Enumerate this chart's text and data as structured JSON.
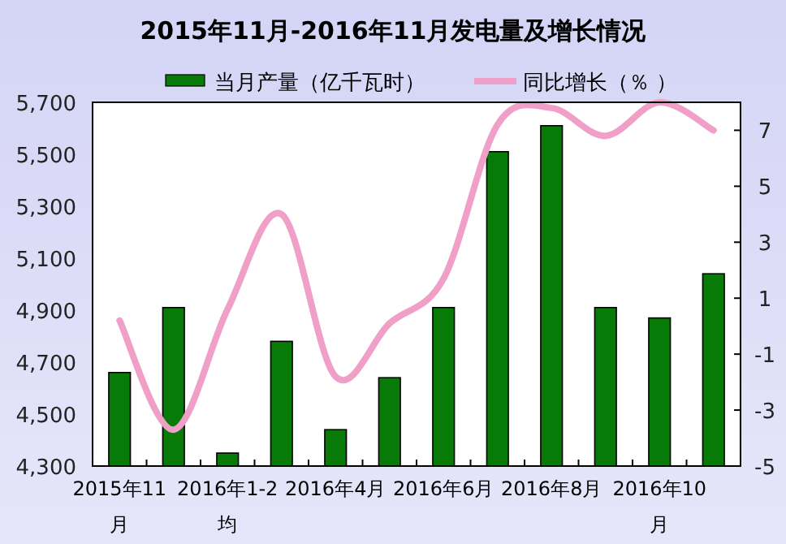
{
  "chart_data": {
    "type": "bar",
    "title": "2015年11月-2016年11月发电量及增长情况",
    "categories": [
      "2015年11月",
      null,
      "2016年1-2均",
      null,
      "2016年4月",
      null,
      "2016年6月",
      null,
      "2016年8月",
      null,
      "2016年10月",
      null
    ],
    "series": [
      {
        "name": "当月产量（亿千瓦时）",
        "color": "#077a07",
        "values": [
          4660,
          4910,
          4350,
          4780,
          4440,
          4640,
          4910,
          5510,
          5610,
          4910,
          4870,
          5040
        ]
      },
      {
        "name": "同比增长（％ ）",
        "type": "line",
        "axis": "y2",
        "color": "#f0a0c8",
        "values": [
          0.2,
          -3.7,
          0.6,
          4.0,
          -1.8,
          0.1,
          1.7,
          7.2,
          7.8,
          6.8,
          8.0,
          7.0
        ]
      }
    ],
    "ylim": [
      4300,
      5700
    ],
    "yticks": [
      {
        "value": 4300,
        "label": "4,300"
      },
      {
        "value": 4500,
        "label": "4,500"
      },
      {
        "value": 4700,
        "label": "4,700"
      },
      {
        "value": 4900,
        "label": "4,900"
      },
      {
        "value": 5100,
        "label": "5,100"
      },
      {
        "value": 5300,
        "label": "5,300"
      },
      {
        "value": 5500,
        "label": "5,500"
      },
      {
        "value": 5700,
        "label": "5,700"
      }
    ],
    "y2lim": [
      -5,
      8
    ],
    "y2ticks": [
      -5,
      -3,
      -1,
      1,
      3,
      5,
      7
    ],
    "legend": "top",
    "grid": false,
    "marker": "none",
    "line_style": "solid"
  }
}
